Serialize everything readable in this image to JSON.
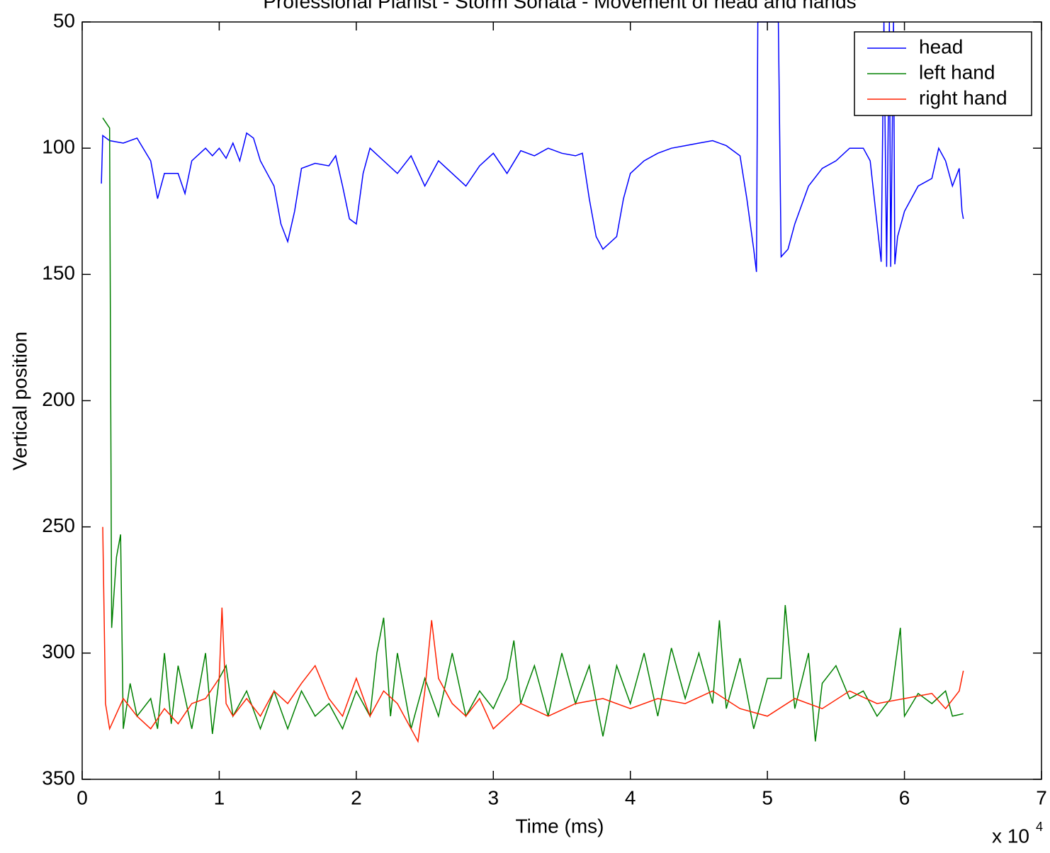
{
  "chart_data": {
    "type": "line",
    "title": "Professional Pianist - Storm Sonata - Movement of head and hands",
    "xlabel": "Time (ms)",
    "ylabel": "Vertical position",
    "x_multiplier": {
      "base": "x 10",
      "exponent": "4"
    },
    "xlim": [
      0,
      7
    ],
    "xticks": [
      0,
      1,
      2,
      3,
      4,
      5,
      6,
      7
    ],
    "ylim": [
      50,
      350
    ],
    "yticks": [
      50,
      100,
      150,
      200,
      250,
      300,
      350
    ],
    "y_reversed": true,
    "legend": "upper right",
    "series": [
      {
        "name": "head",
        "color": "#0000ff",
        "x": [
          0.14,
          0.15,
          0.2,
          0.3,
          0.4,
          0.5,
          0.55,
          0.6,
          0.7,
          0.75,
          0.8,
          0.9,
          0.95,
          1.0,
          1.05,
          1.1,
          1.15,
          1.2,
          1.25,
          1.3,
          1.35,
          1.4,
          1.45,
          1.5,
          1.55,
          1.6,
          1.7,
          1.8,
          1.85,
          1.9,
          1.95,
          2.0,
          2.05,
          2.1,
          2.2,
          2.3,
          2.4,
          2.5,
          2.6,
          2.7,
          2.8,
          2.9,
          3.0,
          3.1,
          3.2,
          3.3,
          3.4,
          3.5,
          3.6,
          3.65,
          3.7,
          3.75,
          3.8,
          3.9,
          3.95,
          4.0,
          4.1,
          4.2,
          4.3,
          4.4,
          4.5,
          4.6,
          4.7,
          4.8,
          4.85,
          4.9,
          4.92,
          4.93,
          5.08,
          5.1,
          5.15,
          5.2,
          5.3,
          5.4,
          5.5,
          5.6,
          5.7,
          5.75,
          5.8,
          5.83,
          5.85,
          5.87,
          5.89,
          5.9,
          5.92,
          5.93,
          5.95,
          6.0,
          6.1,
          6.2,
          6.25,
          6.3,
          6.35,
          6.4,
          6.42,
          6.43
        ],
        "values": [
          114,
          95,
          97,
          98,
          96,
          105,
          120,
          110,
          110,
          118,
          105,
          100,
          103,
          100,
          104,
          98,
          105,
          94,
          96,
          105,
          110,
          115,
          130,
          137,
          125,
          108,
          106,
          107,
          103,
          115,
          128,
          130,
          110,
          100,
          105,
          110,
          103,
          115,
          105,
          110,
          115,
          107,
          102,
          110,
          101,
          103,
          100,
          102,
          103,
          102,
          120,
          135,
          140,
          135,
          120,
          110,
          105,
          102,
          100,
          99,
          98,
          97,
          99,
          103,
          120,
          140,
          149,
          50,
          50,
          143,
          140,
          130,
          115,
          108,
          105,
          100,
          100,
          105,
          130,
          145,
          50,
          147,
          50,
          147,
          50,
          146,
          135,
          125,
          115,
          112,
          100,
          105,
          115,
          108,
          125,
          128
        ]
      },
      {
        "name": "left hand",
        "color": "#008000",
        "x": [
          0.15,
          0.2,
          0.215,
          0.25,
          0.28,
          0.3,
          0.35,
          0.4,
          0.5,
          0.55,
          0.6,
          0.65,
          0.7,
          0.8,
          0.9,
          0.95,
          1.0,
          1.05,
          1.1,
          1.2,
          1.3,
          1.4,
          1.5,
          1.6,
          1.7,
          1.8,
          1.9,
          2.0,
          2.1,
          2.15,
          2.2,
          2.25,
          2.3,
          2.4,
          2.5,
          2.6,
          2.7,
          2.8,
          2.9,
          3.0,
          3.1,
          3.15,
          3.2,
          3.3,
          3.4,
          3.5,
          3.6,
          3.7,
          3.8,
          3.9,
          4.0,
          4.1,
          4.2,
          4.3,
          4.4,
          4.5,
          4.6,
          4.65,
          4.7,
          4.8,
          4.9,
          5.0,
          5.1,
          5.13,
          5.2,
          5.3,
          5.35,
          5.4,
          5.5,
          5.6,
          5.7,
          5.8,
          5.9,
          5.97,
          6.0,
          6.1,
          6.2,
          6.3,
          6.35,
          6.43
        ],
        "values": [
          88,
          92,
          290,
          262,
          253,
          330,
          312,
          325,
          318,
          330,
          300,
          328,
          305,
          330,
          300,
          332,
          310,
          305,
          325,
          315,
          330,
          315,
          330,
          315,
          325,
          320,
          330,
          315,
          325,
          300,
          286,
          325,
          300,
          330,
          310,
          325,
          300,
          325,
          315,
          322,
          310,
          295,
          320,
          305,
          325,
          300,
          320,
          305,
          333,
          305,
          320,
          300,
          325,
          298,
          318,
          300,
          320,
          287,
          322,
          302,
          330,
          310,
          310,
          281,
          322,
          300,
          335,
          312,
          305,
          318,
          315,
          325,
          318,
          290,
          325,
          316,
          320,
          315,
          325,
          324
        ]
      },
      {
        "name": "right hand",
        "color": "#ff2000",
        "x": [
          0.15,
          0.17,
          0.2,
          0.3,
          0.4,
          0.5,
          0.6,
          0.7,
          0.8,
          0.9,
          1.0,
          1.02,
          1.05,
          1.1,
          1.2,
          1.3,
          1.4,
          1.5,
          1.6,
          1.7,
          1.8,
          1.9,
          2.0,
          2.1,
          2.2,
          2.3,
          2.4,
          2.45,
          2.5,
          2.55,
          2.6,
          2.7,
          2.8,
          2.9,
          3.0,
          3.2,
          3.4,
          3.6,
          3.8,
          4.0,
          4.2,
          4.4,
          4.6,
          4.8,
          5.0,
          5.2,
          5.4,
          5.6,
          5.8,
          6.0,
          6.2,
          6.3,
          6.4,
          6.43
        ],
        "values": [
          250,
          320,
          330,
          318,
          325,
          330,
          322,
          328,
          320,
          318,
          310,
          282,
          320,
          325,
          318,
          325,
          315,
          320,
          312,
          305,
          318,
          325,
          310,
          325,
          315,
          320,
          330,
          335,
          315,
          287,
          310,
          320,
          325,
          318,
          330,
          320,
          325,
          320,
          318,
          322,
          318,
          320,
          315,
          322,
          325,
          318,
          322,
          315,
          320,
          318,
          316,
          322,
          315,
          307
        ]
      }
    ]
  }
}
